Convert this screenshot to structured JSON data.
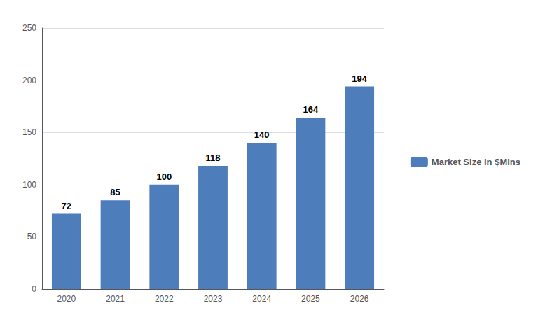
{
  "chart_data": {
    "type": "bar",
    "categories": [
      "2020",
      "2021",
      "2022",
      "2023",
      "2024",
      "2025",
      "2026"
    ],
    "series": [
      {
        "name": "Market Size in $Mlns",
        "color": "#4d7dba",
        "values": [
          72,
          85,
          100,
          118,
          140,
          164,
          194
        ]
      }
    ],
    "ylim": [
      0,
      250
    ],
    "yticks": [
      0,
      50,
      100,
      150,
      200,
      250
    ],
    "grid": true,
    "legend": "right",
    "data_labels": true
  }
}
